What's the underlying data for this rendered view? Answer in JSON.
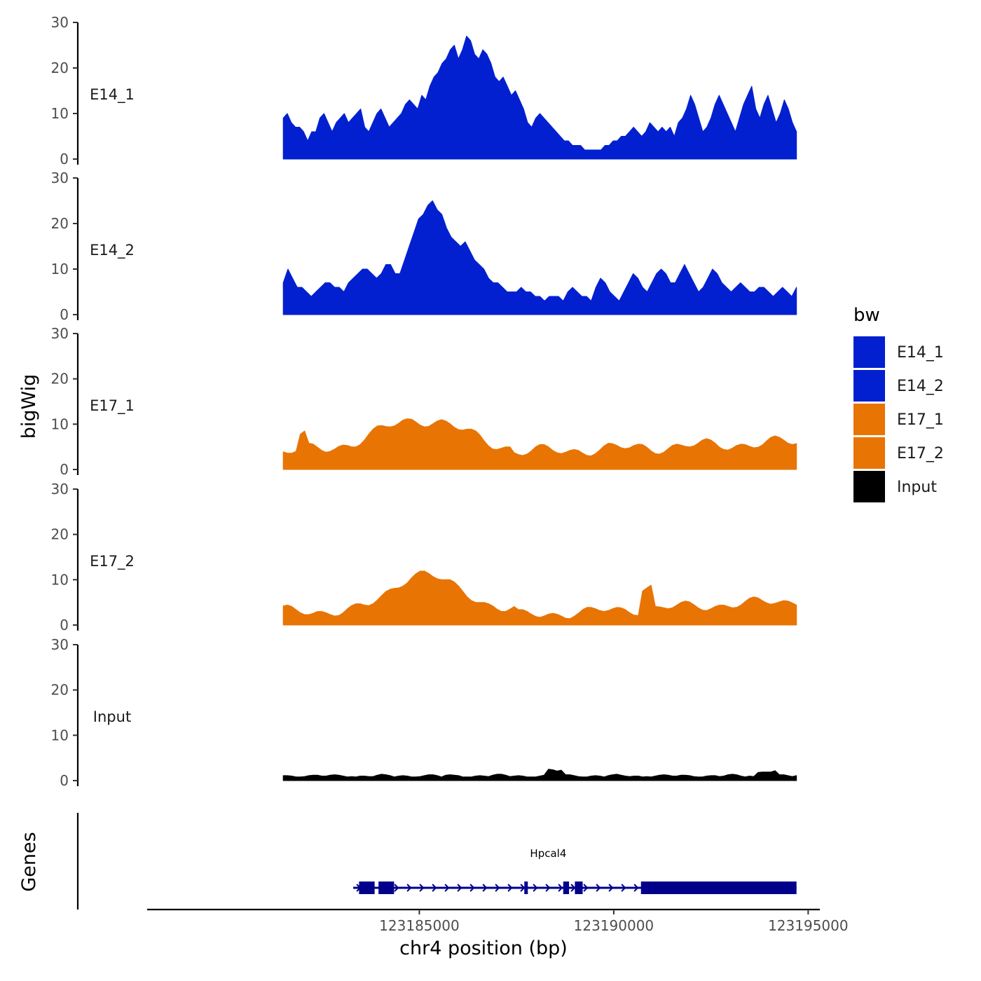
{
  "chart_data": {
    "type": "area",
    "ylabel": "bigWig",
    "genes_label": "Genes",
    "xlabel": "chr4 position (bp)",
    "x_range": [
      123181500,
      123194700
    ],
    "x_axis_limits": [
      123178000,
      123195300
    ],
    "x_ticks": [
      123185000,
      123190000,
      123195000
    ],
    "x_tick_labels": [
      "123185000",
      "123190000",
      "123195000"
    ],
    "y_ticks": [
      0,
      10,
      20,
      30
    ],
    "y_tick_labels": [
      "0",
      "10",
      "20",
      "30"
    ],
    "ylim": [
      0,
      30
    ],
    "legend": {
      "title": "bw",
      "entries": [
        {
          "label": "E14_1",
          "color": "#0220D0"
        },
        {
          "label": "E14_2",
          "color": "#0220D0"
        },
        {
          "label": "E17_1",
          "color": "#E87404"
        },
        {
          "label": "E17_2",
          "color": "#E87404"
        },
        {
          "label": "Input",
          "color": "#000000"
        }
      ]
    },
    "series": [
      {
        "name": "E14_1",
        "color": "#0220D0",
        "values": [
          9,
          10,
          8,
          7,
          7,
          6,
          4,
          6,
          6,
          9,
          10,
          8,
          6,
          8,
          9,
          10,
          8,
          9,
          10,
          11,
          7,
          6,
          8,
          10,
          11,
          9,
          7,
          8,
          9,
          10,
          12,
          13,
          12,
          11,
          14,
          13,
          16,
          18,
          19,
          21,
          22,
          24,
          25,
          22,
          24,
          27,
          26,
          23,
          22,
          24,
          23,
          21,
          18,
          17,
          18,
          16,
          14,
          15,
          13,
          11,
          8,
          7,
          9,
          10,
          9,
          8,
          7,
          6,
          5,
          4,
          4,
          3,
          3,
          3,
          2,
          2,
          2,
          2,
          2,
          3,
          3,
          4,
          4,
          5,
          5,
          6,
          7,
          6,
          5,
          6,
          8,
          7,
          6,
          7,
          6,
          7,
          5,
          8,
          9,
          11,
          14,
          12,
          9,
          6,
          7,
          9,
          12,
          14,
          12,
          10,
          8,
          6,
          9,
          12,
          14,
          16,
          11,
          9,
          12,
          14,
          11,
          8,
          10,
          13,
          11,
          8,
          6
        ]
      },
      {
        "name": "E14_2",
        "color": "#0220D0",
        "values": [
          7,
          10,
          8,
          6,
          6,
          5,
          4,
          5,
          6,
          7,
          7,
          6,
          6,
          5,
          7,
          8,
          9,
          10,
          10,
          9,
          8,
          9,
          11,
          11,
          9,
          9,
          12,
          15,
          18,
          21,
          22,
          24,
          25,
          23,
          22,
          19,
          17,
          16,
          15,
          16,
          14,
          12,
          11,
          10,
          8,
          7,
          7,
          6,
          5,
          5,
          5,
          6,
          5,
          5,
          4,
          4,
          3,
          4,
          4,
          4,
          3,
          5,
          6,
          5,
          4,
          4,
          3,
          6,
          8,
          7,
          5,
          4,
          3,
          5,
          7,
          9,
          8,
          6,
          5,
          7,
          9,
          10,
          9,
          7,
          7,
          9,
          11,
          9,
          7,
          5,
          6,
          8,
          10,
          9,
          7,
          6,
          5,
          6,
          7,
          6,
          5,
          5,
          6,
          6,
          5,
          4,
          5,
          6,
          5,
          4,
          6
        ]
      },
      {
        "name": "E17_1",
        "color": "#E87404"
      },
      {
        "name": "E17_2",
        "color": "#E87404"
      },
      {
        "name": "Input",
        "color": "#000000"
      }
    ],
    "genes": [
      {
        "name": "Hpcal4",
        "strand": "+",
        "start": 123183300,
        "end": 123194700,
        "exons": [
          [
            123183450,
            123183850
          ],
          [
            123183950,
            123184350
          ],
          [
            123187700,
            123187780
          ],
          [
            123188700,
            123188850
          ],
          [
            123189000,
            123189200
          ],
          [
            123190700,
            123194700
          ]
        ]
      }
    ]
  }
}
